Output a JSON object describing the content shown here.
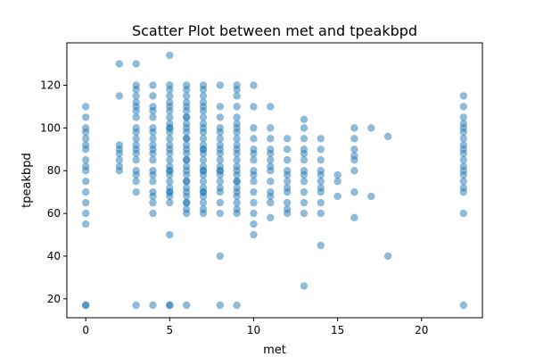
{
  "chart_data": {
    "type": "scatter",
    "title": "Scatter Plot between met and tpeakbpd",
    "xlabel": "met",
    "ylabel": "tpeakbpd",
    "xlim": [
      -1.125,
      23.625
    ],
    "ylim": [
      11.15,
      139.85
    ],
    "xticks": [
      0,
      5,
      10,
      15,
      20
    ],
    "yticks": [
      20,
      40,
      60,
      80,
      100,
      120
    ],
    "grid": false,
    "legend": "none",
    "marker_color": "#1f77b4",
    "marker_alpha": 0.5,
    "series": [
      {
        "x": [
          0,
          0,
          0,
          0,
          0,
          0,
          0,
          0,
          0,
          0,
          0,
          0,
          0,
          0,
          0,
          0,
          0,
          2,
          2,
          2,
          2,
          2,
          2,
          2,
          2,
          3,
          3,
          3,
          3,
          3,
          3,
          3,
          3,
          3,
          3,
          3,
          3,
          3,
          3,
          3,
          3,
          3,
          3,
          3,
          3,
          4,
          4,
          4,
          4,
          4,
          4,
          4,
          4,
          4,
          4,
          4,
          4,
          4,
          4,
          4,
          4,
          4,
          4,
          4,
          4,
          5,
          5,
          5,
          5,
          5,
          5,
          5,
          5,
          5,
          5,
          5,
          5,
          5,
          5,
          5,
          5,
          5,
          5,
          5,
          5,
          5,
          5,
          5,
          5,
          5,
          5,
          5,
          5,
          5,
          5,
          6,
          6,
          6,
          6,
          6,
          6,
          6,
          6,
          6,
          6,
          6,
          6,
          6,
          6,
          6,
          6,
          6,
          6,
          6,
          6,
          6,
          6,
          6,
          6,
          6,
          6,
          6,
          6,
          6,
          6,
          6,
          7,
          7,
          7,
          7,
          7,
          7,
          7,
          7,
          7,
          7,
          7,
          7,
          7,
          7,
          7,
          7,
          7,
          7,
          7,
          7,
          7,
          7,
          7,
          7,
          7,
          7,
          7,
          7,
          8,
          8,
          8,
          8,
          8,
          8,
          8,
          8,
          8,
          8,
          8,
          8,
          8,
          8,
          8,
          8,
          8,
          8,
          8,
          8,
          8,
          9,
          9,
          9,
          9,
          9,
          9,
          9,
          9,
          9,
          9,
          9,
          9,
          9,
          9,
          9,
          9,
          9,
          9,
          9,
          9,
          9,
          9,
          9,
          9,
          9,
          10,
          10,
          10,
          10,
          10,
          10,
          10,
          10,
          10,
          10,
          10,
          10,
          10,
          10,
          10,
          11,
          11,
          11,
          11,
          11,
          11,
          11,
          11,
          11,
          11,
          11,
          11,
          11,
          12,
          12,
          12,
          12,
          12,
          12,
          12,
          12,
          12,
          12,
          12,
          13,
          13,
          13,
          13,
          13,
          13,
          13,
          13,
          13,
          13,
          13,
          13,
          13,
          14,
          14,
          14,
          14,
          14,
          14,
          14,
          14,
          14,
          14,
          14,
          15,
          15,
          15,
          16,
          16,
          16,
          16,
          16,
          16,
          16,
          16,
          17,
          17,
          18,
          18,
          22.5,
          22.5,
          22.5,
          22.5,
          22.5,
          22.5,
          22.5,
          22.5,
          22.5,
          22.5,
          22.5,
          22.5,
          22.5,
          22.5,
          22.5,
          22.5,
          22.5,
          22.5,
          22.5
        ],
        "y": [
          17,
          55,
          60,
          65,
          70,
          75,
          80,
          82,
          85,
          90,
          92,
          95,
          98,
          100,
          105,
          110,
          17,
          80,
          82,
          85,
          88,
          90,
          92,
          115,
          130,
          17,
          70,
          75,
          78,
          80,
          85,
          88,
          90,
          92,
          95,
          98,
          100,
          105,
          108,
          110,
          112,
          115,
          118,
          120,
          130,
          17,
          60,
          65,
          68,
          70,
          75,
          78,
          80,
          85,
          88,
          90,
          92,
          95,
          98,
          100,
          105,
          108,
          110,
          115,
          120,
          17,
          50,
          65,
          68,
          70,
          72,
          75,
          78,
          80,
          82,
          85,
          88,
          90,
          92,
          95,
          98,
          100,
          102,
          105,
          108,
          110,
          112,
          115,
          118,
          120,
          134,
          17,
          70,
          80,
          100,
          17,
          60,
          62,
          65,
          68,
          70,
          72,
          75,
          78,
          80,
          82,
          85,
          88,
          90,
          92,
          95,
          98,
          100,
          102,
          105,
          108,
          110,
          112,
          115,
          118,
          120,
          65,
          75,
          85,
          95,
          105,
          60,
          62,
          65,
          68,
          70,
          72,
          75,
          78,
          80,
          82,
          85,
          88,
          90,
          92,
          95,
          98,
          100,
          102,
          105,
          108,
          110,
          112,
          115,
          118,
          120,
          70,
          80,
          90,
          17,
          40,
          60,
          65,
          70,
          72,
          75,
          78,
          80,
          82,
          85,
          88,
          90,
          92,
          95,
          98,
          100,
          105,
          110,
          120,
          80,
          17,
          60,
          62,
          65,
          68,
          70,
          72,
          75,
          78,
          80,
          82,
          85,
          88,
          90,
          92,
          95,
          98,
          100,
          102,
          105,
          110,
          115,
          118,
          120,
          75,
          50,
          55,
          60,
          65,
          70,
          75,
          78,
          80,
          85,
          88,
          90,
          95,
          100,
          110,
          120,
          58,
          65,
          68,
          70,
          75,
          80,
          82,
          85,
          88,
          90,
          95,
          100,
          110,
          60,
          62,
          65,
          70,
          72,
          75,
          78,
          80,
          85,
          90,
          95,
          26,
          60,
          65,
          70,
          75,
          78,
          80,
          85,
          88,
          90,
          95,
          100,
          104,
          45,
          60,
          65,
          70,
          72,
          75,
          78,
          80,
          85,
          90,
          95,
          68,
          75,
          78,
          58,
          70,
          80,
          85,
          87,
          90,
          95,
          100,
          68,
          100,
          40,
          96,
          17,
          60,
          70,
          72,
          75,
          78,
          80,
          82,
          85,
          88,
          90,
          92,
          95,
          98,
          100,
          102,
          105,
          110,
          115
        ]
      }
    ]
  }
}
